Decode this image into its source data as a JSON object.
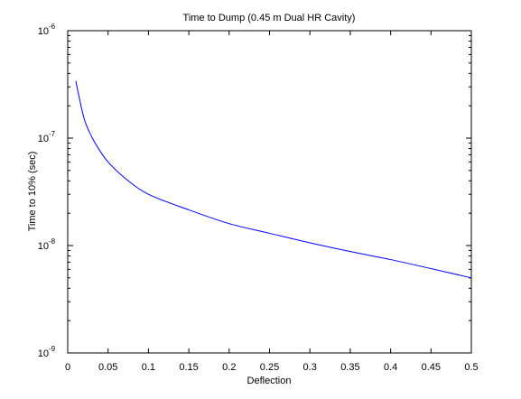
{
  "chart_data": {
    "type": "line",
    "title": "Time to Dump (0.45 m Dual HR Cavity)",
    "xlabel": "Deflection",
    "ylabel": "Time to 10% (sec)",
    "xlim": [
      0,
      0.5
    ],
    "ylim": [
      1e-09,
      1e-06
    ],
    "yscale": "log",
    "grid": false,
    "x_ticks": [
      {
        "value": 0,
        "label": "0"
      },
      {
        "value": 0.05,
        "label": "0.05"
      },
      {
        "value": 0.1,
        "label": "0.1"
      },
      {
        "value": 0.15,
        "label": "0.15"
      },
      {
        "value": 0.2,
        "label": "0.2"
      },
      {
        "value": 0.25,
        "label": "0.25"
      },
      {
        "value": 0.3,
        "label": "0.3"
      },
      {
        "value": 0.35,
        "label": "0.35"
      },
      {
        "value": 0.4,
        "label": "0.4"
      },
      {
        "value": 0.45,
        "label": "0.45"
      },
      {
        "value": 0.5,
        "label": "0.5"
      }
    ],
    "y_ticks": [
      {
        "value": 1e-09,
        "base": "10",
        "exponent": "-9"
      },
      {
        "value": 1e-08,
        "base": "10",
        "exponent": "-8"
      },
      {
        "value": 1e-07,
        "base": "10",
        "exponent": "-7"
      },
      {
        "value": 1e-06,
        "base": "10",
        "exponent": "-6"
      }
    ],
    "series": [
      {
        "color": "#0000ff",
        "x": [
          0.01,
          0.02,
          0.03,
          0.04,
          0.05,
          0.07,
          0.1,
          0.15,
          0.2,
          0.25,
          0.3,
          0.35,
          0.4,
          0.45,
          0.5
        ],
        "y": [
          3.4e-07,
          1.55e-07,
          1.02e-07,
          7.6e-08,
          6e-08,
          4.3e-08,
          3e-08,
          2.15e-08,
          1.6e-08,
          1.3e-08,
          1.06e-08,
          8.8e-09,
          7.4e-09,
          6.1e-09,
          5e-09
        ]
      }
    ]
  }
}
